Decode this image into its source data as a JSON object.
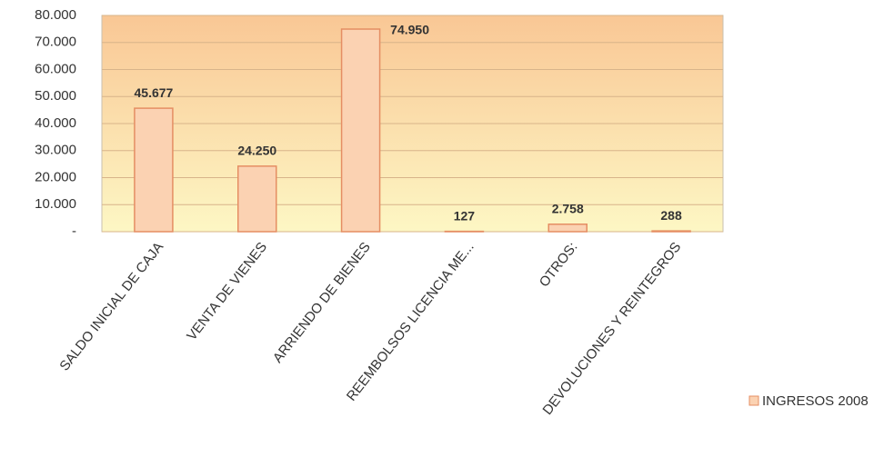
{
  "chart_data": {
    "type": "bar",
    "categories": [
      "SALDO INICIAL DE CAJA",
      "VENTA DE VIENES",
      "ARRIENDO DE BIENES",
      "REEMBOLSOS LICENCIA ME...",
      "OTROS:",
      "DEVOLUCIONES Y REINTEGROS"
    ],
    "series": [
      {
        "name": "INGRESOS 2008",
        "color": "#fbd2b2",
        "values": [
          45677,
          24250,
          74950,
          127,
          2758,
          288
        ],
        "value_labels": [
          "45.677",
          "24.250",
          "74.950",
          "127",
          "2.758",
          "288"
        ]
      }
    ],
    "ylim": [
      0,
      80000
    ],
    "yticks": [
      {
        "value": 0,
        "label": "-"
      },
      {
        "value": 10000,
        "label": "10.000"
      },
      {
        "value": 20000,
        "label": "20.000"
      },
      {
        "value": 30000,
        "label": "30.000"
      },
      {
        "value": 40000,
        "label": "40.000"
      },
      {
        "value": 50000,
        "label": "50.000"
      },
      {
        "value": 60000,
        "label": "60.000"
      },
      {
        "value": 70000,
        "label": "70.000"
      },
      {
        "value": 80000,
        "label": "80.000"
      }
    ],
    "grid": true,
    "legend": "right"
  }
}
